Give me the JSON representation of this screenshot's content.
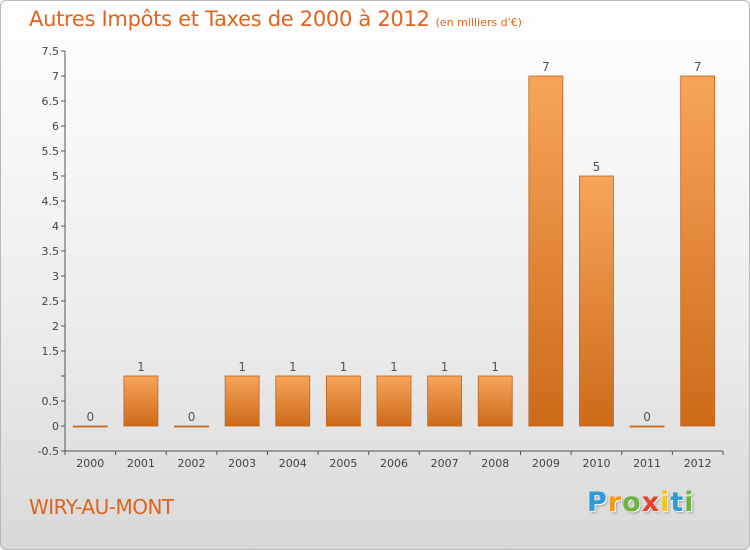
{
  "header": {
    "title": "Autres Impôts et Taxes de 2000 à 2012",
    "unit": "(en milliers d'€)"
  },
  "footer": {
    "town": "WIRY-AU-MONT",
    "logo": [
      "P",
      "r",
      "o",
      "x",
      "i",
      "t",
      "i"
    ],
    "logo_colors": [
      "#2e9ad6",
      "#f39a1b",
      "#6db33f",
      "#e8432a",
      "#f5c518",
      "#2e9ad6",
      "#6db33f"
    ]
  },
  "colors": {
    "title": "#e0641e",
    "bar_light": "#f7a55a",
    "bar_dark": "#cd6a1a",
    "axis": "#555555",
    "tick_label": "#444444"
  },
  "chart_data": {
    "type": "bar",
    "categories": [
      "2000",
      "2001",
      "2002",
      "2003",
      "2004",
      "2005",
      "2006",
      "2007",
      "2008",
      "2009",
      "2010",
      "2011",
      "2012"
    ],
    "values": [
      0,
      1,
      0,
      1,
      1,
      1,
      1,
      1,
      1,
      7,
      5,
      0,
      7
    ],
    "data_labels": [
      "0",
      "1",
      "0",
      "1",
      "1",
      "1",
      "1",
      "1",
      "1",
      "7",
      "5",
      "0",
      "7"
    ],
    "yticks": [
      -0.5,
      0,
      0.5,
      1,
      1.5,
      2,
      2.5,
      3,
      3.5,
      4,
      4.5,
      5,
      5.5,
      6,
      6.5,
      7,
      7.5
    ],
    "ytick_labels": [
      "-0.5",
      "0",
      "0.5",
      "",
      "1.5",
      "2",
      "2.5",
      "3",
      "3.5",
      "4",
      "4.5",
      "5",
      "5.5",
      "6",
      "6.5",
      "7",
      "7.5"
    ],
    "ylim": [
      -0.5,
      7.5
    ],
    "title": "Autres Impôts et Taxes de 2000 à 2012",
    "xlabel": "",
    "ylabel": "",
    "grid": false,
    "legend": "none"
  }
}
